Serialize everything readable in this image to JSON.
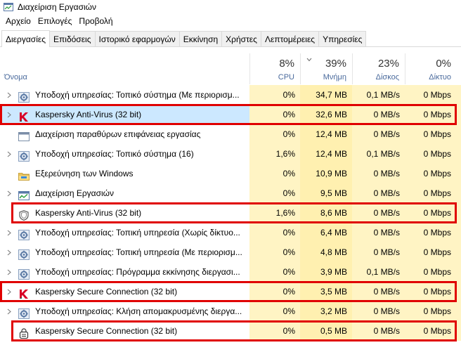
{
  "window": {
    "title": "Διαχείριση Εργασιών"
  },
  "menu": [
    "Αρχείο",
    "Επιλογές",
    "Προβολή"
  ],
  "tabs": [
    {
      "label": "Διεργασίες",
      "active": true
    },
    {
      "label": "Επιδόσεις",
      "active": false
    },
    {
      "label": "Ιστορικό εφαρμογών",
      "active": false
    },
    {
      "label": "Εκκίνηση",
      "active": false
    },
    {
      "label": "Χρήστες",
      "active": false
    },
    {
      "label": "Λεπτομέρειες",
      "active": false
    },
    {
      "label": "Υπηρεσίες",
      "active": false
    }
  ],
  "columns": {
    "name": "Όνομα",
    "cpu": {
      "pct": "8%",
      "label": "CPU"
    },
    "memory": {
      "pct": "39%",
      "label": "Μνήμη"
    },
    "disk": {
      "pct": "23%",
      "label": "Δίσκος"
    },
    "network": {
      "pct": "0%",
      "label": "Δίκτυο"
    }
  },
  "processes": [
    {
      "name": "Υποδοχή υπηρεσίας: Τοπικό σύστημα (Με περιορισμ...",
      "icon": "gear-icon",
      "expandable": true,
      "cpu": "0%",
      "memory": "34,7 MB",
      "disk": "0,1 MB/s",
      "network": "0 Mbps",
      "selected": false,
      "highlighted": false
    },
    {
      "name": "Kaspersky Anti-Virus (32 bit)",
      "icon": "kaspersky-k-icon",
      "expandable": true,
      "cpu": "0%",
      "memory": "32,6 MB",
      "disk": "0 MB/s",
      "network": "0 Mbps",
      "selected": true,
      "highlighted": true
    },
    {
      "name": "Διαχείριση παραθύρων επιφάνειας εργασίας",
      "icon": "window-app-icon",
      "expandable": false,
      "cpu": "0%",
      "memory": "12,4 MB",
      "disk": "0 MB/s",
      "network": "0 Mbps",
      "selected": false,
      "highlighted": false
    },
    {
      "name": "Υποδοχή υπηρεσίας: Τοπικό σύστημα (16)",
      "icon": "gear-icon",
      "expandable": true,
      "cpu": "1,6%",
      "memory": "12,4 MB",
      "disk": "0,1 MB/s",
      "network": "0 Mbps",
      "selected": false,
      "highlighted": false
    },
    {
      "name": "Εξερεύνηση των Windows",
      "icon": "folder-icon",
      "expandable": false,
      "cpu": "0%",
      "memory": "10,9 MB",
      "disk": "0 MB/s",
      "network": "0 Mbps",
      "selected": false,
      "highlighted": false
    },
    {
      "name": "Διαχείριση Εργασιών",
      "icon": "task-manager-icon",
      "expandable": true,
      "cpu": "0%",
      "memory": "9,5 MB",
      "disk": "0 MB/s",
      "network": "0 Mbps",
      "selected": false,
      "highlighted": false
    },
    {
      "name": "Kaspersky Anti-Virus (32 bit)",
      "icon": "kaspersky-shield-icon",
      "expandable": false,
      "cpu": "1,6%",
      "memory": "8,6 MB",
      "disk": "0 MB/s",
      "network": "0 Mbps",
      "selected": false,
      "highlighted": true
    },
    {
      "name": "Υποδοχή υπηρεσίας: Τοπική υπηρεσία (Χωρίς δίκτυο...",
      "icon": "gear-icon",
      "expandable": true,
      "cpu": "0%",
      "memory": "6,4 MB",
      "disk": "0 MB/s",
      "network": "0 Mbps",
      "selected": false,
      "highlighted": false
    },
    {
      "name": "Υποδοχή υπηρεσίας: Τοπική υπηρεσία (Με περιορισμ...",
      "icon": "gear-icon",
      "expandable": true,
      "cpu": "0%",
      "memory": "4,8 MB",
      "disk": "0 MB/s",
      "network": "0 Mbps",
      "selected": false,
      "highlighted": false
    },
    {
      "name": "Υποδοχή υπηρεσίας: Πρόγραμμα εκκίνησης διεργασι...",
      "icon": "gear-icon",
      "expandable": true,
      "cpu": "0%",
      "memory": "3,9 MB",
      "disk": "0,1 MB/s",
      "network": "0 Mbps",
      "selected": false,
      "highlighted": false
    },
    {
      "name": "Kaspersky Secure Connection (32 bit)",
      "icon": "kaspersky-k-icon",
      "expandable": true,
      "cpu": "0%",
      "memory": "3,5 MB",
      "disk": "0 MB/s",
      "network": "0 Mbps",
      "selected": false,
      "highlighted": true
    },
    {
      "name": "Υποδοχή υπηρεσίας: Κλήση απομακρυσμένης διεργα...",
      "icon": "gear-icon",
      "expandable": true,
      "cpu": "0%",
      "memory": "3,2 MB",
      "disk": "0 MB/s",
      "network": "0 Mbps",
      "selected": false,
      "highlighted": false
    },
    {
      "name": "Kaspersky Secure Connection (32 bit)",
      "icon": "kaspersky-vpn-icon",
      "expandable": false,
      "cpu": "0%",
      "memory": "0,5 MB",
      "disk": "0 MB/s",
      "network": "0 Mbps",
      "selected": false,
      "highlighted": true
    }
  ],
  "colors": {
    "highlight": "#e00000",
    "selected": "#cce8ff",
    "heat_light": "#fff4c4",
    "heat_medium": "#fff0b0",
    "column_label": "#4a6a9c"
  }
}
